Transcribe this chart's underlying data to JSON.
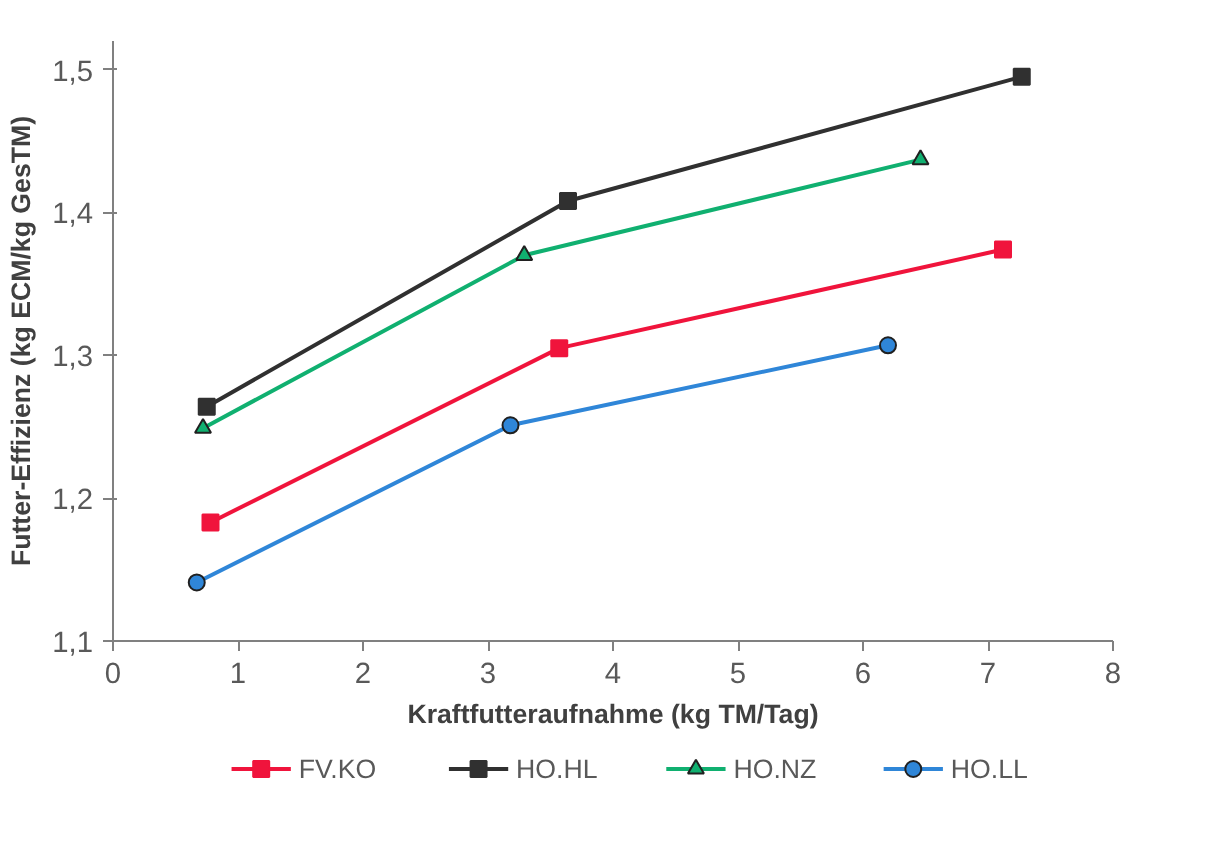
{
  "chart_data": {
    "type": "line",
    "xlabel": "Kraftfutteraufnahme (kg TM/Tag)",
    "ylabel": "Futter-Effizienz (kg ECM/kg GesTM)",
    "xlim": [
      0,
      8
    ],
    "xticks": [
      0,
      1,
      2,
      3,
      4,
      5,
      6,
      7,
      8
    ],
    "ylim": [
      1.1,
      1.52
    ],
    "yticks": [
      {
        "value": 1.1,
        "label": "1,1"
      },
      {
        "value": 1.2,
        "label": "1,2"
      },
      {
        "value": 1.3,
        "label": "1,3"
      },
      {
        "value": 1.4,
        "label": "1,4"
      },
      {
        "value": 1.5,
        "label": "1,5"
      }
    ],
    "grid": false,
    "legend": "bottom",
    "line_style": "solid",
    "series": [
      {
        "name": "FV.KO",
        "color": "#f0143c",
        "marker": "square",
        "x": [
          0.78,
          3.57,
          7.12
        ],
        "values": [
          1.183,
          1.305,
          1.374
        ]
      },
      {
        "name": "HO.HL",
        "color": "#303030",
        "marker": "square",
        "x": [
          0.75,
          3.64,
          7.27
        ],
        "values": [
          1.264,
          1.408,
          1.495
        ]
      },
      {
        "name": "HO.NZ",
        "color": "#10b070",
        "marker": "triangle",
        "x": [
          0.72,
          3.29,
          6.46
        ],
        "values": [
          1.249,
          1.37,
          1.437
        ]
      },
      {
        "name": "HO.LL",
        "color": "#2f86d8",
        "marker": "circle",
        "x": [
          0.67,
          3.18,
          6.2
        ],
        "values": [
          1.141,
          1.251,
          1.307
        ]
      }
    ]
  }
}
